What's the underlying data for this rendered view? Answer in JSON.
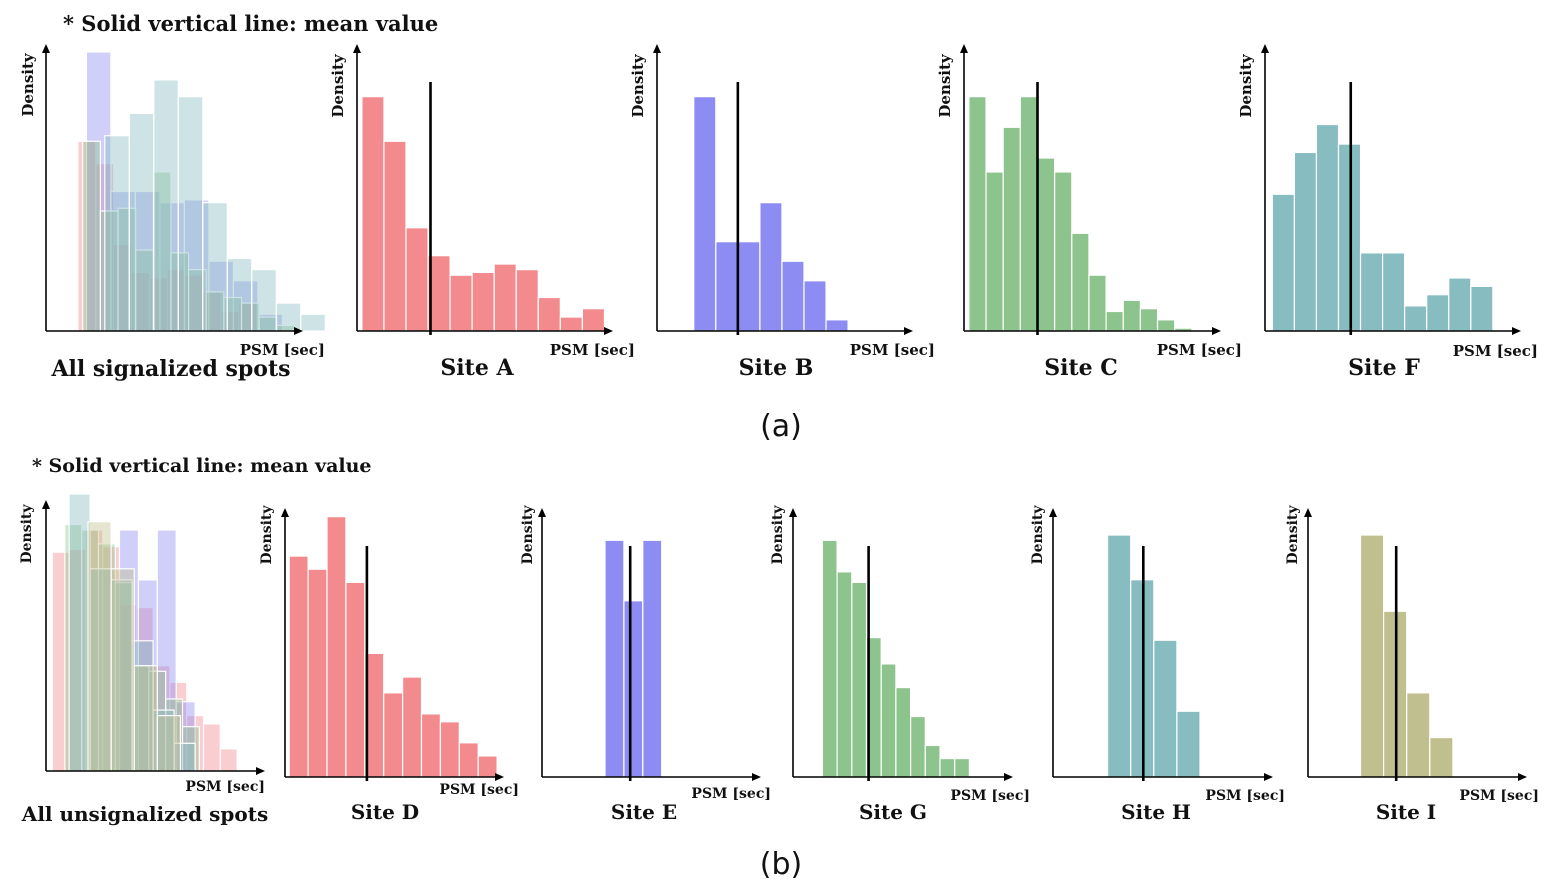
{
  "figure": {
    "note_a": "* Solid vertical line: mean value",
    "note_b": "* Solid vertical line: mean value",
    "caption_a": "(a)",
    "caption_b": "(b)"
  },
  "colors": {
    "red": "#f28a8e",
    "blue": "#8c8cf2",
    "green": "#8dc48d",
    "teal": "#87bcc0",
    "olive": "#c0c08e"
  },
  "chart_data": [
    {
      "type": "bar",
      "panel": "a",
      "title": "All signalized spots",
      "xlabel": "PSM [sec]",
      "ylabel": "Density",
      "ylim": [
        0,
        1
      ],
      "overlay": true,
      "series": [
        {
          "name": "Site A",
          "color": "red",
          "start": 0.13,
          "width": 0.073,
          "values": [
            0.68,
            0.6,
            0.31,
            0.21,
            0.19,
            0.22,
            0.2,
            0.14,
            0.07,
            0.1
          ]
        },
        {
          "name": "Site B",
          "color": "blue",
          "start": 0.165,
          "width": 0.1,
          "values": [
            1.0,
            0.5,
            0.5,
            0.46,
            0.47,
            0.25,
            0.18,
            0.06
          ]
        },
        {
          "name": "Site C",
          "color": "green",
          "start": 0.15,
          "width": 0.072,
          "values": [
            0.68,
            0.43,
            0.44,
            0.29,
            0.57,
            0.28,
            0.22,
            0.14,
            0.12,
            0.1,
            0.05,
            0.02
          ]
        },
        {
          "name": "Site F",
          "color": "teal",
          "start": 0.24,
          "width": 0.1,
          "values": [
            0.7,
            0.78,
            0.9,
            0.84,
            0.46,
            0.26,
            0.22,
            0.1,
            0.06
          ]
        }
      ]
    },
    {
      "type": "bar",
      "panel": "a",
      "title": "Site A",
      "xlabel": "PSM [sec]",
      "ylabel": "Density",
      "ylim": [
        0,
        1
      ],
      "color": "red",
      "start": 0.02,
      "width": 0.09,
      "values": [
        0.84,
        0.68,
        0.37,
        0.27,
        0.2,
        0.21,
        0.24,
        0.22,
        0.12,
        0.05,
        0.08
      ],
      "mean": 0.3
    },
    {
      "type": "bar",
      "panel": "a",
      "title": "Site B",
      "xlabel": "PSM [sec]",
      "ylabel": "Density",
      "ylim": [
        0,
        1
      ],
      "color": "blue",
      "start": 0.15,
      "width": 0.09,
      "values": [
        0.84,
        0.32,
        0.32,
        0.46,
        0.25,
        0.18,
        0.04
      ],
      "mean": 0.33
    },
    {
      "type": "bar",
      "panel": "a",
      "title": "Site C",
      "xlabel": "PSM [sec]",
      "ylabel": "Density",
      "ylim": [
        0,
        1
      ],
      "color": "green",
      "start": 0.02,
      "width": 0.07,
      "values": [
        0.84,
        0.57,
        0.73,
        0.84,
        0.62,
        0.57,
        0.35,
        0.2,
        0.07,
        0.11,
        0.08,
        0.04,
        0.01
      ],
      "mean": 0.3
    },
    {
      "type": "bar",
      "panel": "a",
      "title": "Site F",
      "xlabel": "PSM [sec]",
      "ylabel": "Density",
      "ylim": [
        0,
        1
      ],
      "color": "teal",
      "start": 0.03,
      "width": 0.09,
      "values": [
        0.49,
        0.64,
        0.74,
        0.67,
        0.28,
        0.28,
        0.09,
        0.13,
        0.19,
        0.16
      ],
      "mean": 0.35
    },
    {
      "type": "bar",
      "panel": "b",
      "title": "All unsignalized spots",
      "xlabel": "PSM [sec]",
      "ylabel": "Density",
      "ylim": [
        0,
        1
      ],
      "overlay": true,
      "series": [
        {
          "name": "Site D",
          "color": "red",
          "start": 0.03,
          "width": 0.08,
          "values": [
            0.79,
            0.8,
            0.87,
            0.81,
            0.6,
            0.59,
            0.38,
            0.32,
            0.2,
            0.17,
            0.08
          ]
        },
        {
          "name": "Site E",
          "color": "blue",
          "start": 0.35,
          "width": 0.09,
          "values": [
            0.87,
            0.69,
            0.87,
            0.25
          ]
        },
        {
          "name": "Site G",
          "color": "green",
          "start": 0.09,
          "width": 0.08,
          "values": [
            0.89,
            0.87,
            0.82,
            0.68,
            0.38,
            0.36,
            0.26,
            0.16
          ]
        },
        {
          "name": "Site H",
          "color": "teal",
          "start": 0.11,
          "width": 0.1,
          "values": [
            1.0,
            0.73,
            0.69,
            0.47,
            0.22,
            0.1
          ]
        },
        {
          "name": "Site I",
          "color": "olive",
          "start": 0.2,
          "width": 0.11,
          "values": [
            0.9,
            0.73,
            0.38,
            0.2
          ]
        }
      ]
    },
    {
      "type": "bar",
      "panel": "b",
      "title": "Site D",
      "xlabel": "PSM [sec]",
      "ylabel": "Density",
      "ylim": [
        0,
        1
      ],
      "color": "red",
      "start": 0.02,
      "width": 0.09,
      "values": [
        0.84,
        0.79,
        0.99,
        0.74,
        0.47,
        0.32,
        0.38,
        0.24,
        0.21,
        0.13,
        0.08
      ],
      "mean": 0.39
    },
    {
      "type": "bar",
      "panel": "b",
      "title": "Site E",
      "xlabel": "PSM [sec]",
      "ylabel": "Density",
      "ylim": [
        0,
        1
      ],
      "color": "blue",
      "start": 0.3,
      "width": 0.09,
      "values": [
        0.9,
        0.67,
        0.9
      ],
      "mean": 0.42
    },
    {
      "type": "bar",
      "panel": "b",
      "title": "Site G",
      "xlabel": "PSM [sec]",
      "ylabel": "Density",
      "ylim": [
        0,
        1
      ],
      "color": "green",
      "start": 0.14,
      "width": 0.07,
      "values": [
        0.9,
        0.78,
        0.74,
        0.53,
        0.43,
        0.34,
        0.23,
        0.12,
        0.07,
        0.07
      ],
      "mean": 0.36
    },
    {
      "type": "bar",
      "panel": "b",
      "title": "Site H",
      "xlabel": "PSM [sec]",
      "ylabel": "Density",
      "ylim": [
        0,
        1
      ],
      "color": "teal",
      "start": 0.26,
      "width": 0.11,
      "values": [
        0.92,
        0.75,
        0.52,
        0.25
      ],
      "mean": 0.43
    },
    {
      "type": "bar",
      "panel": "b",
      "title": "Site I",
      "xlabel": "PSM [sec]",
      "ylabel": "Density",
      "ylim": [
        0,
        1
      ],
      "color": "olive",
      "start": 0.25,
      "width": 0.11,
      "values": [
        0.92,
        0.63,
        0.32,
        0.15
      ],
      "mean": 0.42
    }
  ]
}
